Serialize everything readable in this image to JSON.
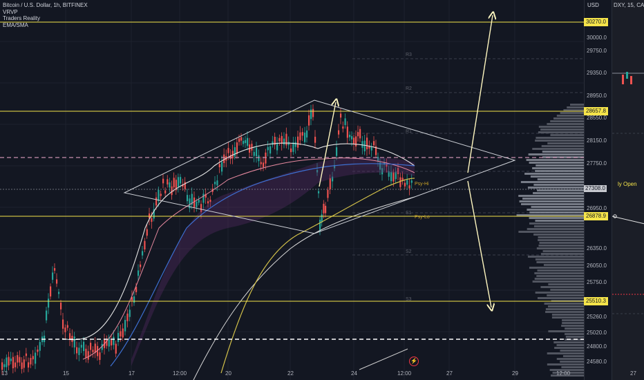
{
  "legend": {
    "title": "Bitcoin / U.S. Dollar, 1h, BITFINEX",
    "indicators": [
      "VRVP",
      "Traders Reality",
      "EMA/SMA"
    ]
  },
  "price_scale": {
    "currency": "USD",
    "ticks": [
      "30000.0",
      "29750.0",
      "29350.0",
      "28950.0",
      "28550.0",
      "28150.0",
      "27750.0",
      "26950.0",
      "26350.0",
      "26050.0",
      "25750.0",
      "25260.0",
      "25020.0",
      "24800.0",
      "24580.0"
    ],
    "highlighted": [
      "30270.0",
      "28657.8",
      "26878.9",
      "25510.3"
    ],
    "current": "27308.0"
  },
  "pivots": {
    "r3": "R3",
    "r2": "R2",
    "r1": "R1",
    "s1": "S1",
    "s2": "S2",
    "s3": "S3"
  },
  "psy": {
    "hi": "Psy-Hi",
    "lo": "Psy-Lo"
  },
  "time_axis": [
    "13",
    "15",
    "17",
    "12:00",
    "20",
    "22",
    "24",
    "12:00",
    "27",
    "29",
    "12:00"
  ],
  "side_pane": {
    "title": "DXY, 15, CA",
    "open_label": "ly Open",
    "time_label": "27"
  },
  "colors": {
    "background": "#131722",
    "level_line": "#f5e44a",
    "bull": "#26a69a",
    "bear": "#ef5350",
    "dashed_level": "#c78fb0"
  }
}
